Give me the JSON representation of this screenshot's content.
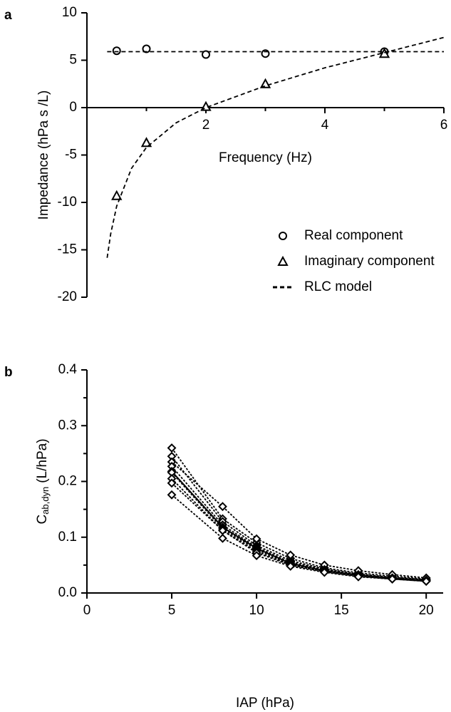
{
  "chart_data": [
    {
      "type": "line",
      "panel": "a",
      "x_label": "Frequency (Hz)",
      "y_label": "Impedance (hPa s /L)",
      "xlim": [
        0,
        6
      ],
      "xticks": [
        2,
        4,
        6
      ],
      "xminor": [
        1,
        3,
        5
      ],
      "ylim": [
        -20,
        10
      ],
      "yticks": [
        -20,
        -15,
        -10,
        -5,
        0,
        5,
        10
      ],
      "legend": "bottom-right",
      "series": [
        {
          "name": "Real component",
          "color": "#000000",
          "marker": "circle",
          "line": null,
          "x": [
            0.5,
            1,
            2,
            3,
            5
          ],
          "values": [
            6.0,
            6.2,
            5.6,
            5.7,
            5.9
          ]
        },
        {
          "name": "Imaginary component",
          "color": "#000000",
          "marker": "triangle",
          "line": null,
          "x": [
            0.5,
            1,
            2,
            3,
            5
          ],
          "values": [
            -9.3,
            -3.7,
            0.1,
            2.5,
            5.7
          ]
        },
        {
          "name": "RLC model",
          "color": "#000000",
          "marker": null,
          "line": "dashed",
          "x": [
            0.34,
            0.4,
            0.5,
            0.75,
            1,
            1.5,
            2,
            3,
            4,
            5,
            6
          ],
          "values": [
            -15.85,
            -13.3,
            -10.4,
            -6.4,
            -4.2,
            -1.6,
            0,
            2.3,
            4.2,
            5.8,
            7.4
          ]
        },
        {
          "color": "#000000",
          "marker": null,
          "line": "dashed",
          "x": [
            0.34,
            6
          ],
          "values": [
            5.9,
            5.9
          ]
        }
      ]
    },
    {
      "type": "line",
      "panel": "b",
      "x_label": "IAP (hPa)",
      "y_label": "C",
      "y_label_sub": "ab,dyn",
      "y_label_unit": "(L/hPa)",
      "xlim": [
        0,
        21
      ],
      "xticks": [
        0,
        5,
        10,
        15,
        20
      ],
      "ylim": [
        0,
        0.4
      ],
      "yticks": [
        {
          "value": 0,
          "label": "0.0"
        },
        0.1,
        0.2,
        0.3,
        0.4
      ],
      "yminor": [
        0.05,
        0.15,
        0.25,
        0.35
      ],
      "x": [
        5,
        8,
        10,
        12,
        14,
        16,
        18,
        20
      ],
      "series": [
        {
          "color": "#000000",
          "marker": "diamond",
          "line": "dashed",
          "values": [
            0.26,
            0.133,
            0.09,
            0.062,
            0.045,
            0.036,
            0.03,
            0.025
          ]
        },
        {
          "color": "#000000",
          "marker": "diamond",
          "line": "dashed",
          "values": [
            0.245,
            0.128,
            0.085,
            0.058,
            0.043,
            0.034,
            0.028,
            0.024
          ]
        },
        {
          "color": "#000000",
          "marker": "diamond",
          "line": "dashed",
          "values": [
            0.235,
            0.155,
            0.097,
            0.068,
            0.05,
            0.04,
            0.033,
            0.027
          ]
        },
        {
          "color": "#000000",
          "marker": "diamond",
          "line": "dashed",
          "values": [
            0.227,
            0.122,
            0.082,
            0.055,
            0.042,
            0.033,
            0.027,
            0.023
          ]
        },
        {
          "color": "#000000",
          "marker": "diamond",
          "line": "solid",
          "values": [
            0.218,
            0.118,
            0.08,
            0.053,
            0.04,
            0.032,
            0.027,
            0.022
          ]
        },
        {
          "color": "#000000",
          "marker": "diamond",
          "line": "dashed",
          "values": [
            0.216,
            0.115,
            0.078,
            0.052,
            0.04,
            0.031,
            0.026,
            0.022
          ]
        },
        {
          "color": "#000000",
          "marker": "diamond",
          "line": "dashed",
          "values": [
            0.205,
            0.112,
            0.075,
            0.05,
            0.039,
            0.031,
            0.026,
            0.022
          ]
        },
        {
          "color": "#000000",
          "marker": "diamond",
          "line": "dashed",
          "values": [
            0.197,
            0.112,
            0.072,
            0.05,
            0.038,
            0.03,
            0.025,
            0.021
          ]
        },
        {
          "color": "#000000",
          "marker": "diamond",
          "line": "dashed",
          "values": [
            0.176,
            0.098,
            0.067,
            0.048,
            0.037,
            0.029,
            0.025,
            0.021
          ]
        }
      ]
    }
  ]
}
